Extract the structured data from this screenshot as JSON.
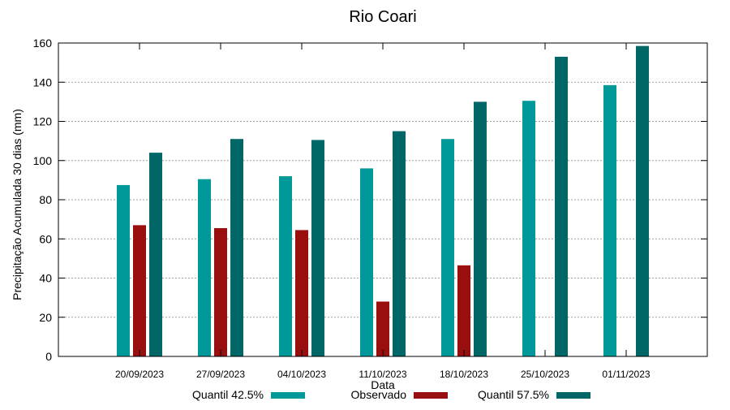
{
  "chart_data": {
    "type": "bar",
    "title": "Rio Coari",
    "xlabel": "Data",
    "ylabel": "Precipitação Acumulada 30 dias (mm)",
    "ylim": [
      0,
      160
    ],
    "yticks": [
      0,
      20,
      40,
      60,
      80,
      100,
      120,
      140,
      160
    ],
    "grid": true,
    "legend_position": "bottom",
    "categories": [
      "20/09/2023",
      "27/09/2023",
      "04/10/2023",
      "11/10/2023",
      "18/10/2023",
      "25/10/2023",
      "01/11/2023"
    ],
    "series": [
      {
        "name": "Quantil 42.5%",
        "color": "#009999",
        "values": [
          87.5,
          90.5,
          92,
          96,
          111,
          130.5,
          138.5
        ]
      },
      {
        "name": "Observado",
        "color": "#990f0f",
        "values": [
          67,
          65.5,
          64.5,
          28,
          46.5,
          null,
          null
        ]
      },
      {
        "name": "Quantil 57.5%",
        "color": "#006666",
        "values": [
          104,
          111,
          110.5,
          115,
          130,
          153,
          158.5
        ]
      }
    ]
  }
}
